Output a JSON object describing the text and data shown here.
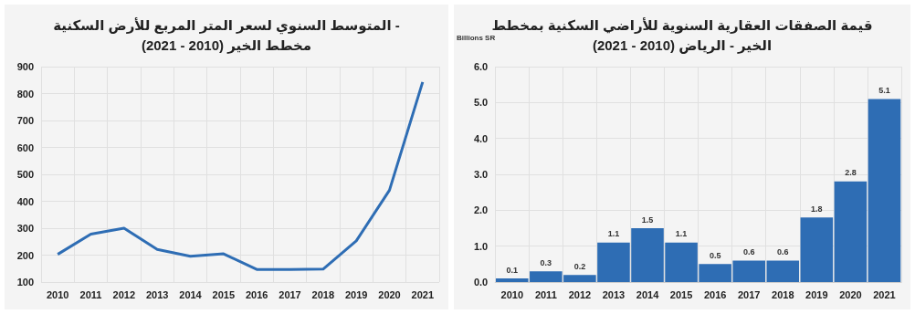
{
  "chart_data": [
    {
      "type": "line",
      "title": "المتوسط السنوي لسعر المتر المربع للأرض السكنية -\nمخطط الخير (2010 - 2021)",
      "categories": [
        "2010",
        "2011",
        "2012",
        "2013",
        "2014",
        "2015",
        "2016",
        "2017",
        "2018",
        "2019",
        "2020",
        "2021"
      ],
      "series": [
        {
          "color": "#2e6db4",
          "values": [
            203,
            278,
            300,
            221,
            196,
            205,
            147,
            147,
            148,
            253,
            441,
            843
          ]
        }
      ],
      "ylim": [
        100,
        900
      ],
      "yticks": [
        100,
        200,
        300,
        400,
        500,
        600,
        700,
        800,
        900
      ],
      "grid": true,
      "marker": "none",
      "line_style": "solid"
    },
    {
      "type": "bar",
      "title": "قيمة الصفقات العقارية السنوية للأراضي السكنية بمخطط\nالخير - الرياض (2010 - 2021)",
      "ylabel": "Billions SR",
      "categories": [
        "2010",
        "2011",
        "2012",
        "2013",
        "2014",
        "2015",
        "2016",
        "2017",
        "2018",
        "2019",
        "2020",
        "2021"
      ],
      "series": [
        {
          "color": "#2e6db4",
          "values": [
            0.1,
            0.3,
            0.2,
            1.1,
            1.5,
            1.1,
            0.5,
            0.6,
            0.6,
            1.8,
            2.8,
            5.1
          ]
        }
      ],
      "ylim": [
        0,
        6
      ],
      "yticks": [
        {
          "value": 0,
          "label": "0.0"
        },
        {
          "value": 1,
          "label": "1.0"
        },
        {
          "value": 2,
          "label": "2.0"
        },
        {
          "value": 3,
          "label": "3.0"
        },
        {
          "value": 4,
          "label": "4.0"
        },
        {
          "value": 5,
          "label": "5.0"
        },
        {
          "value": 6,
          "label": "6.0"
        }
      ],
      "grid": true,
      "data_labels": true
    }
  ]
}
